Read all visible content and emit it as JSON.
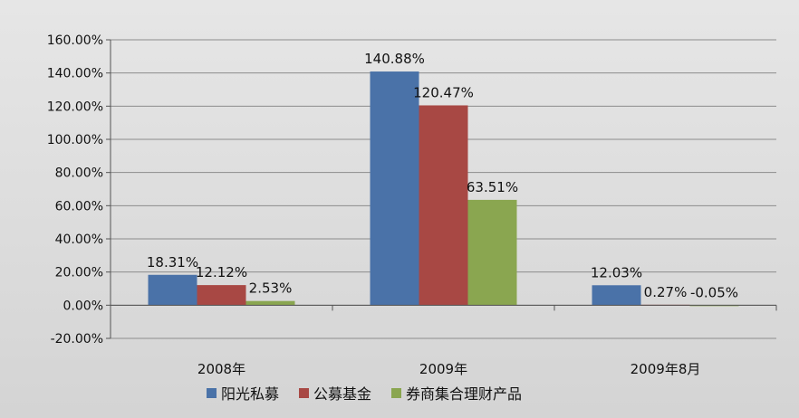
{
  "chart_data": {
    "type": "bar",
    "title": "",
    "xlabel": "",
    "ylabel": "",
    "categories": [
      "2008年",
      "2009年",
      "2009年8月"
    ],
    "series": [
      {
        "name": "阳光私募",
        "values": [
          18.31,
          140.88,
          12.03
        ],
        "labels": [
          "18.31%",
          "140.88%",
          "12.03%"
        ],
        "color": "#4a72a8"
      },
      {
        "name": "公募基金",
        "values": [
          12.12,
          120.47,
          0.27
        ],
        "labels": [
          "12.12%",
          "120.47%",
          "0.27%"
        ],
        "color": "#a84844"
      },
      {
        "name": "券商集合理财产品",
        "values": [
          2.53,
          63.51,
          -0.05
        ],
        "labels": [
          "2.53%",
          "63.51%",
          "-0.05%"
        ],
        "color": "#8aa650"
      }
    ],
    "ylim": [
      -20,
      160
    ],
    "yticks": [
      -20,
      0,
      20,
      40,
      60,
      80,
      100,
      120,
      140,
      160
    ],
    "ytick_labels": [
      "-20.00%",
      "0.00%",
      "20.00%",
      "40.00%",
      "60.00%",
      "80.00%",
      "100.00%",
      "120.00%",
      "140.00%",
      "160.00%"
    ],
    "grid": true,
    "legend_position": "bottom"
  }
}
